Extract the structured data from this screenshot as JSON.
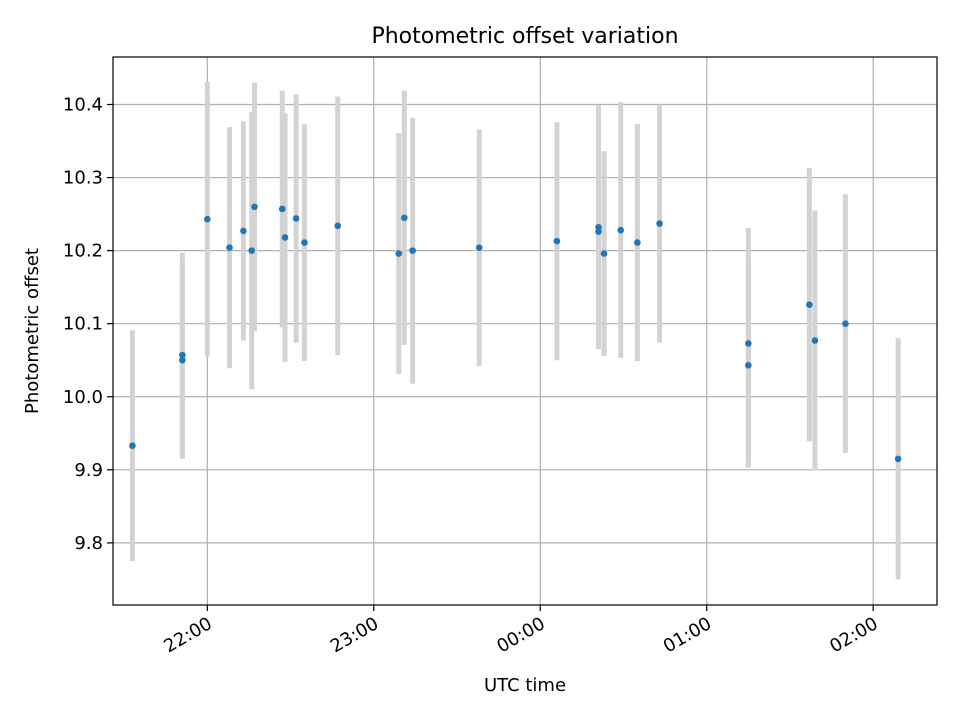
{
  "chart_data": {
    "type": "scatter",
    "title": "Photometric offset variation",
    "xlabel": "UTC time",
    "ylabel": "Photometric offset",
    "grid": true,
    "xlim": [
      "21:26",
      "02:23"
    ],
    "ylim": [
      9.715,
      10.465
    ],
    "x_ticks": [
      "22:00",
      "23:00",
      "00:00",
      "01:00",
      "02:00"
    ],
    "y_ticks": [
      "9.8",
      "9.9",
      "10.0",
      "10.1",
      "10.2",
      "10.3",
      "10.4"
    ],
    "series": [
      {
        "errorbar_color": "#d3d3d3",
        "marker_color": "#1f77b4",
        "points": [
          {
            "x": "21:33",
            "y": 9.933,
            "yerr": 0.158
          },
          {
            "x": "21:51",
            "y": 10.057,
            "yerr": 0.14
          },
          {
            "x": "21:51",
            "y": 10.05,
            "yerr": 0.135
          },
          {
            "x": "22:00",
            "y": 10.243,
            "yerr": 0.188
          },
          {
            "x": "22:08",
            "y": 10.204,
            "yerr": 0.165
          },
          {
            "x": "22:13",
            "y": 10.227,
            "yerr": 0.15
          },
          {
            "x": "22:16",
            "y": 10.2,
            "yerr": 0.19
          },
          {
            "x": "22:17",
            "y": 10.26,
            "yerr": 0.17
          },
          {
            "x": "22:27",
            "y": 10.257,
            "yerr": 0.162
          },
          {
            "x": "22:28",
            "y": 10.218,
            "yerr": 0.17
          },
          {
            "x": "22:32",
            "y": 10.244,
            "yerr": 0.17
          },
          {
            "x": "22:35",
            "y": 10.211,
            "yerr": 0.162
          },
          {
            "x": "22:47",
            "y": 10.234,
            "yerr": 0.177
          },
          {
            "x": "23:09",
            "y": 10.196,
            "yerr": 0.165
          },
          {
            "x": "23:11",
            "y": 10.245,
            "yerr": 0.174
          },
          {
            "x": "23:14",
            "y": 10.2,
            "yerr": 0.182
          },
          {
            "x": "23:38",
            "y": 10.204,
            "yerr": 0.162
          },
          {
            "x": "00:06",
            "y": 10.213,
            "yerr": 0.163
          },
          {
            "x": "00:21",
            "y": 10.226,
            "yerr": 0.158
          },
          {
            "x": "00:21",
            "y": 10.232,
            "yerr": 0.167
          },
          {
            "x": "00:23",
            "y": 10.196,
            "yerr": 0.14
          },
          {
            "x": "00:29",
            "y": 10.228,
            "yerr": 0.175
          },
          {
            "x": "00:35",
            "y": 10.211,
            "yerr": 0.162
          },
          {
            "x": "00:43",
            "y": 10.237,
            "yerr": 0.163
          },
          {
            "x": "01:15",
            "y": 10.073,
            "yerr": 0.158
          },
          {
            "x": "01:15",
            "y": 10.043,
            "yerr": 0.14
          },
          {
            "x": "01:37",
            "y": 10.126,
            "yerr": 0.187
          },
          {
            "x": "01:39",
            "y": 10.077,
            "yerr": 0.178
          },
          {
            "x": "01:50",
            "y": 10.1,
            "yerr": 0.177
          },
          {
            "x": "02:09",
            "y": 9.915,
            "yerr": 0.165
          }
        ]
      }
    ]
  }
}
